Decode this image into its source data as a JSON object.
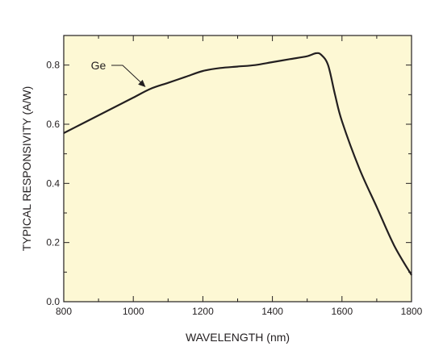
{
  "chart_data": {
    "type": "line",
    "title": "",
    "xlabel": "WAVELENGTH (nm)",
    "ylabel": "TYPICAL RESPONSIVITY (A/W)",
    "xlim": [
      800,
      1800
    ],
    "ylim": [
      0,
      0.9
    ],
    "x_ticks": [
      800,
      1000,
      1200,
      1400,
      1600,
      1800
    ],
    "x_tick_labels": [
      "800",
      "1000",
      "1200",
      "1400",
      "1600",
      "1800"
    ],
    "y_ticks": [
      0,
      0.2,
      0.4,
      0.6,
      0.8
    ],
    "y_tick_labels": [
      "0.0",
      "0.2",
      "0.4",
      "0.6",
      "0.8"
    ],
    "grid": false,
    "legend": "none",
    "series": [
      {
        "name": "Ge",
        "x": [
          800,
          850,
          900,
          950,
          1000,
          1050,
          1100,
          1150,
          1200,
          1250,
          1300,
          1350,
          1400,
          1450,
          1500,
          1525,
          1540,
          1560,
          1580,
          1600,
          1650,
          1700,
          1750,
          1800
        ],
        "y": [
          0.57,
          0.6,
          0.63,
          0.66,
          0.69,
          0.72,
          0.74,
          0.76,
          0.78,
          0.79,
          0.795,
          0.8,
          0.81,
          0.82,
          0.83,
          0.84,
          0.835,
          0.8,
          0.7,
          0.61,
          0.45,
          0.32,
          0.19,
          0.09
        ]
      }
    ],
    "annotations": [
      {
        "text": "Ge",
        "points_to": [
          1040,
          0.72
        ]
      }
    ]
  },
  "colors": {
    "plot_background": "#fdf8d4",
    "line": "#231f20",
    "axis": "#231f20",
    "text": "#231f20"
  }
}
